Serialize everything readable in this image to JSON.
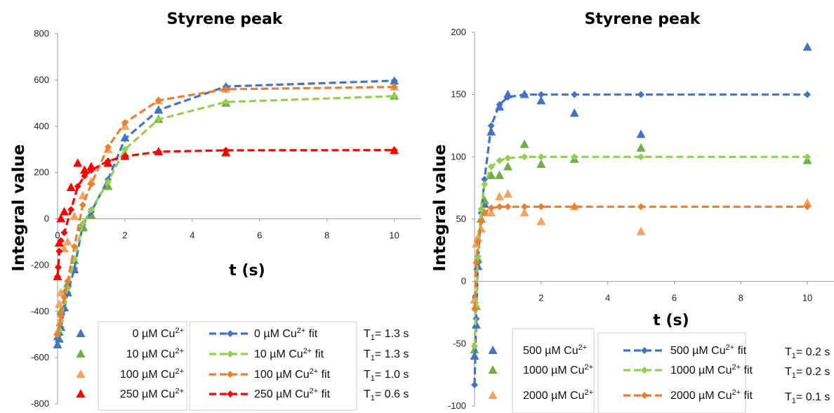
{
  "chart_data": [
    {
      "type": "scatter",
      "title": "Styrene peak",
      "xlabel": "t (s)",
      "ylabel": "Integral value",
      "xlim": [
        0,
        10.8
      ],
      "ylim": [
        -800,
        800
      ],
      "x_ticks": [
        "0",
        "2",
        "4",
        "6",
        "8",
        "10"
      ],
      "y_ticks": [
        "-800",
        "-600",
        "-400",
        "-200",
        "0",
        "200",
        "400",
        "600",
        "800"
      ],
      "grid": false,
      "legend_position": "bottom",
      "series": [
        {
          "name": "0 µM Cu2+",
          "color": "#4472c4",
          "marker": "triangle",
          "x": [
            0,
            0.05,
            0.1,
            0.2,
            0.3,
            0.5,
            0.75,
            1,
            1.5,
            2,
            3,
            5,
            10
          ],
          "y": [
            -545,
            -520,
            -470,
            -385,
            -320,
            -220,
            -35,
            15,
            140,
            350,
            470,
            570,
            595
          ]
        },
        {
          "name": "10 µM Cu2+",
          "color": "#70ad47",
          "marker": "triangle",
          "x": [
            0,
            0.05,
            0.1,
            0.2,
            0.3,
            0.5,
            0.75,
            1,
            1.5,
            2,
            3,
            5,
            10
          ],
          "y": [
            -510,
            -490,
            -400,
            -320,
            -280,
            -180,
            -40,
            15,
            140,
            280,
            430,
            500,
            530
          ]
        },
        {
          "name": "100 µM Cu2+",
          "color": "#f4a460",
          "marker": "triangle",
          "x": [
            0,
            0.05,
            0.1,
            0.2,
            0.3,
            0.5,
            0.75,
            1,
            1.5,
            2,
            3,
            5,
            10
          ],
          "y": [
            -490,
            -370,
            -320,
            -130,
            -100,
            10,
            100,
            160,
            300,
            400,
            510,
            560,
            570
          ]
        },
        {
          "name": "250 µM Cu2+",
          "color": "#ff0000",
          "marker": "triangle",
          "x": [
            0,
            0.05,
            0.1,
            0.2,
            0.4,
            0.6,
            0.8,
            1,
            1.5,
            2,
            3,
            5,
            10
          ],
          "y": [
            -250,
            -105,
            0,
            30,
            135,
            240,
            210,
            225,
            240,
            270,
            290,
            285,
            295
          ]
        },
        {
          "name": "0 µM Cu2+ fit",
          "color": "#4472c4",
          "style": "dashed",
          "marker": "diamond",
          "x": [
            0,
            0.05,
            0.1,
            0.2,
            0.3,
            0.5,
            0.75,
            1,
            1.5,
            2,
            3,
            5,
            10
          ],
          "y": [
            -520,
            -500,
            -470,
            -390,
            -320,
            -215,
            -25,
            30,
            170,
            345,
            470,
            572,
            597
          ]
        },
        {
          "name": "10 µM Cu2+ fit",
          "color": "#92d050",
          "style": "dashed",
          "marker": "diamond",
          "x": [
            0,
            0.05,
            0.1,
            0.2,
            0.3,
            0.5,
            0.75,
            1,
            1.5,
            2,
            3,
            5,
            10
          ],
          "y": [
            -500,
            -480,
            -440,
            -360,
            -300,
            -175,
            -20,
            40,
            160,
            300,
            430,
            505,
            530
          ]
        },
        {
          "name": "100 µM Cu2+ fit",
          "color": "#ed7d31",
          "style": "dashed",
          "marker": "diamond",
          "x": [
            0,
            0.05,
            0.1,
            0.2,
            0.3,
            0.5,
            0.75,
            1,
            1.5,
            2,
            3,
            5,
            10
          ],
          "y": [
            -500,
            -460,
            -420,
            -340,
            -270,
            -120,
            60,
            150,
            310,
            415,
            512,
            560,
            570
          ]
        },
        {
          "name": "250 µM Cu2+ fit",
          "color": "#ff0000",
          "style": "dashed",
          "marker": "diamond",
          "x": [
            0,
            0.02,
            0.05,
            0.1,
            0.2,
            0.4,
            0.6,
            0.8,
            1,
            1.5,
            2,
            3,
            5,
            10
          ],
          "y": [
            -250,
            -210,
            -140,
            -95,
            -60,
            40,
            140,
            185,
            210,
            250,
            270,
            290,
            296,
            297
          ]
        }
      ],
      "legend_fit_labels": [
        "0 µM Cu2+ fit",
        "10 µM Cu2+ fit",
        "100 µM Cu2+ fit",
        "250 µM Cu2+ fit"
      ],
      "annotations": [
        "T1= 1.3 s",
        "T1= 1.3 s",
        "T1= 1.0 s",
        "T1= 0.6 s"
      ]
    },
    {
      "type": "scatter",
      "title": "Styrene peak",
      "xlabel": "t (s)",
      "ylabel": "Integral value",
      "xlim": [
        0,
        10.8
      ],
      "ylim": [
        -100,
        200
      ],
      "x_ticks": [
        "0",
        "2",
        "4",
        "6",
        "8",
        "10"
      ],
      "y_ticks": [
        "-100",
        "-50",
        "0",
        "50",
        "100",
        "150",
        "200"
      ],
      "grid": false,
      "legend_position": "bottom",
      "series": [
        {
          "name": "500 µM Cu2+",
          "color": "#4472c4",
          "marker": "triangle",
          "x": [
            0,
            0.05,
            0.1,
            0.2,
            0.3,
            0.5,
            0.75,
            1,
            1.5,
            2,
            3,
            5,
            10
          ],
          "y": [
            -60,
            -35,
            12,
            50,
            62,
            120,
            140,
            150,
            150,
            145,
            135,
            118,
            188
          ]
        },
        {
          "name": "1000 µM Cu2+",
          "color": "#70ad47",
          "marker": "triangle",
          "x": [
            0,
            0.05,
            0.1,
            0.2,
            0.3,
            0.5,
            0.75,
            1,
            1.5,
            2,
            3,
            5,
            10
          ],
          "y": [
            -55,
            -20,
            18,
            50,
            65,
            85,
            85,
            92,
            110,
            94,
            98,
            107,
            97
          ]
        },
        {
          "name": "2000 µM Cu2+",
          "color": "#f4a460",
          "marker": "triangle",
          "x": [
            0,
            0.05,
            0.1,
            0.2,
            0.3,
            0.5,
            0.75,
            1,
            1.5,
            2,
            3,
            5,
            10
          ],
          "y": [
            -15,
            30,
            35,
            42,
            55,
            55,
            68,
            70,
            55,
            48,
            60,
            40,
            63
          ]
        },
        {
          "name": "500 µM Cu2+ fit",
          "color": "#4472c4",
          "style": "dashed",
          "marker": "diamond",
          "x": [
            0,
            0.05,
            0.1,
            0.2,
            0.3,
            0.5,
            0.75,
            1,
            1.5,
            2,
            3,
            5,
            10
          ],
          "y": [
            -83,
            -30,
            15,
            55,
            82,
            125,
            142,
            148,
            150,
            150,
            150,
            150,
            150
          ]
        },
        {
          "name": "1000 µM Cu2+ fit",
          "color": "#92d050",
          "style": "dashed",
          "marker": "diamond",
          "x": [
            0,
            0.05,
            0.1,
            0.2,
            0.3,
            0.5,
            0.75,
            1,
            1.5,
            2,
            3,
            5,
            10
          ],
          "y": [
            -52,
            -20,
            20,
            58,
            78,
            92,
            97,
            99,
            100,
            100,
            100,
            100,
            100
          ]
        },
        {
          "name": "2000 µM Cu2+ fit",
          "color": "#ed7d31",
          "style": "dashed",
          "marker": "diamond",
          "x": [
            0,
            0.05,
            0.1,
            0.2,
            0.3,
            0.5,
            0.75,
            1,
            1.5,
            2,
            3,
            5,
            10
          ],
          "y": [
            -22,
            15,
            32,
            48,
            55,
            59,
            60,
            60,
            60,
            60,
            60,
            60,
            60
          ]
        }
      ],
      "legend_fit_labels": [
        "500 µM Cu2+ fit",
        "1000 µM Cu2+ fit",
        "2000 µM Cu2+ fit"
      ],
      "annotations": [
        "T1= 0.2 s",
        "T1= 0.2 s",
        "T1= 0.1 s"
      ]
    }
  ]
}
